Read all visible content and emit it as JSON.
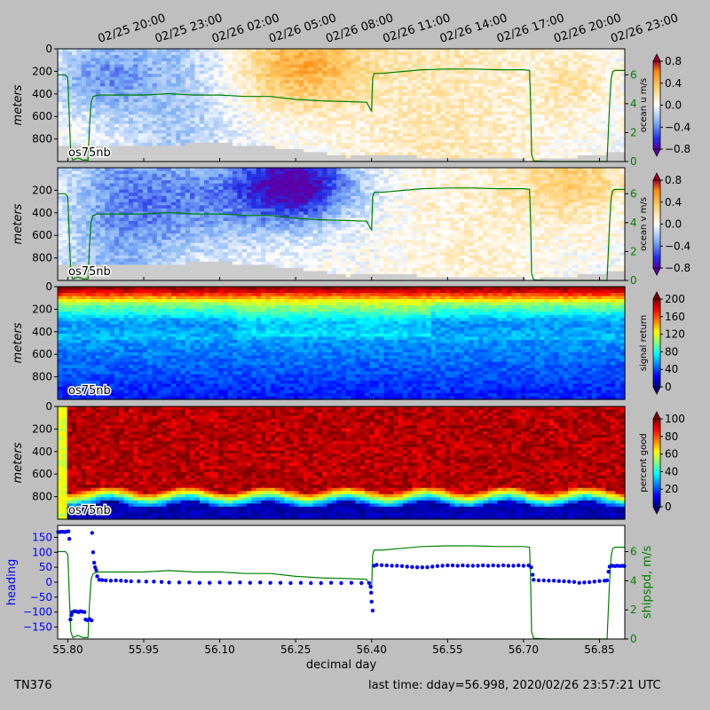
{
  "footer": {
    "cruise_id": "TN376",
    "last_time": "last time: dday=56.998,  2020/02/26 23:57:21 UTC"
  },
  "chart_data": [
    {
      "type": "heatmap",
      "panel": "u",
      "instrument_label": "os75nb",
      "ylabel": "meters",
      "ylim": [
        1000,
        0
      ],
      "yticks": [
        0,
        200,
        400,
        600,
        800
      ],
      "ytick_labels": [
        "0",
        "200",
        "400",
        "600",
        "800"
      ],
      "colorbar_label": "ocean u m/s",
      "colorbar_ticks": [
        "0.8",
        "0.4",
        "0.0",
        "−0.4",
        "−0.8"
      ],
      "colorbar_range": [
        -0.8,
        0.8
      ],
      "colormap": "blue-white-orange",
      "right_axis_ticks": [
        "0",
        "2",
        "4",
        "6"
      ],
      "top_time_labels": [
        "02/25 20:00",
        "02/25 23:00",
        "02/26 02:00",
        "02/26 05:00",
        "02/26 08:00",
        "02/26 11:00",
        "02/26 14:00",
        "02/26 17:00",
        "02/26 20:00",
        "02/26 23:00"
      ],
      "bottom_depth_m": [
        [
          55.78,
          870
        ],
        [
          55.9,
          860
        ],
        [
          56.1,
          840
        ],
        [
          56.2,
          870
        ],
        [
          56.3,
          920
        ],
        [
          56.35,
          960
        ],
        [
          56.4,
          940
        ],
        [
          56.5,
          960
        ],
        [
          56.6,
          960
        ],
        [
          56.72,
          990
        ],
        [
          56.8,
          960
        ],
        [
          56.9,
          910
        ]
      ]
    },
    {
      "type": "heatmap",
      "panel": "v",
      "instrument_label": "os75nb",
      "ylabel": "meters",
      "ylim": [
        1000,
        0
      ],
      "yticks": [
        200,
        400,
        600,
        800
      ],
      "ytick_labels": [
        "200",
        "400",
        "600",
        "800"
      ],
      "colorbar_label": "ocean v m/s",
      "colorbar_ticks": [
        "0.8",
        "0.4",
        "0.0",
        "−0.4",
        "−0.8"
      ],
      "colorbar_range": [
        -0.8,
        0.8
      ],
      "colormap": "blue-white-orange",
      "right_axis_ticks": [
        "0",
        "2",
        "4",
        "6"
      ],
      "bottom_depth_m": [
        [
          55.78,
          870
        ],
        [
          55.9,
          860
        ],
        [
          56.1,
          840
        ],
        [
          56.2,
          870
        ],
        [
          56.3,
          920
        ],
        [
          56.35,
          960
        ],
        [
          56.4,
          940
        ],
        [
          56.5,
          960
        ],
        [
          56.6,
          960
        ],
        [
          56.72,
          990
        ],
        [
          56.8,
          960
        ],
        [
          56.9,
          910
        ]
      ]
    },
    {
      "type": "heatmap",
      "panel": "amp",
      "instrument_label": "os75nb",
      "ylabel": "meters",
      "ylim": [
        1000,
        0
      ],
      "yticks": [
        0,
        200,
        400,
        600,
        800
      ],
      "ytick_labels": [
        "0",
        "200",
        "400",
        "600",
        "800"
      ],
      "colorbar_label": "signal return",
      "colorbar_ticks": [
        "200",
        "160",
        "120",
        "80",
        "40",
        "0"
      ],
      "colorbar_range": [
        0,
        200
      ],
      "colormap": "jet"
    },
    {
      "type": "heatmap",
      "panel": "pg",
      "instrument_label": "os75nb",
      "ylabel": "meters",
      "ylim": [
        1000,
        0
      ],
      "yticks": [
        0,
        200,
        400,
        600,
        800
      ],
      "ytick_labels": [
        "0",
        "200",
        "400",
        "600",
        "800"
      ],
      "colorbar_label": "percent good",
      "colorbar_ticks": [
        "100",
        "80",
        "60",
        "40",
        "20",
        "0"
      ],
      "colorbar_range": [
        0,
        100
      ],
      "colormap": "jet"
    },
    {
      "type": "scatter",
      "panel": "heading",
      "xlabel": "decimal day",
      "xlim": [
        55.78,
        56.9
      ],
      "xticks": [
        55.8,
        55.95,
        56.1,
        56.25,
        56.4,
        56.55,
        56.7,
        56.85
      ],
      "xtick_labels": [
        "55.80",
        "55.95",
        "56.10",
        "56.25",
        "56.40",
        "56.55",
        "56.70",
        "56.85"
      ],
      "ylabel": "heading",
      "ylim": [
        -190,
        190
      ],
      "yticks": [
        150,
        100,
        50,
        0,
        -50,
        -100,
        -150
      ],
      "ytick_labels": [
        "150",
        "100",
        "50",
        "0",
        "−50",
        "−100",
        "−150"
      ],
      "y2label": "shipspd, m/s",
      "y2lim": [
        0,
        7.8
      ],
      "y2ticks": [
        0,
        2,
        4,
        6
      ],
      "y2tick_labels": [
        "0",
        "2",
        "4",
        "6"
      ],
      "colors": {
        "heading": "#0000ff",
        "shipspd": "#008000"
      },
      "series": [
        {
          "name": "heading",
          "type": "scatter",
          "points": [
            [
              55.781,
              168
            ],
            [
              55.785,
              168
            ],
            [
              55.789,
              169
            ],
            [
              55.793,
              168
            ],
            [
              55.797,
              169
            ],
            [
              55.801,
              170
            ],
            [
              55.803,
              145
            ],
            [
              55.805,
              -125
            ],
            [
              55.807,
              -110
            ],
            [
              55.809,
              -100
            ],
            [
              55.813,
              -97
            ],
            [
              55.817,
              -98
            ],
            [
              55.821,
              -100
            ],
            [
              55.825,
              -97
            ],
            [
              55.829,
              -99
            ],
            [
              55.833,
              -100
            ],
            [
              55.835,
              -125
            ],
            [
              55.839,
              -127
            ],
            [
              55.843,
              -123
            ],
            [
              55.847,
              -128
            ],
            [
              55.848,
              165
            ],
            [
              55.85,
              100
            ],
            [
              55.852,
              65
            ],
            [
              55.854,
              50
            ],
            [
              55.856,
              40
            ],
            [
              55.858,
              20
            ],
            [
              55.862,
              8
            ],
            [
              55.868,
              7
            ],
            [
              55.875,
              6
            ],
            [
              55.885,
              5
            ],
            [
              55.895,
              6
            ],
            [
              55.905,
              5
            ],
            [
              55.915,
              4
            ],
            [
              55.925,
              3
            ],
            [
              55.94,
              3
            ],
            [
              55.955,
              2
            ],
            [
              55.97,
              2
            ],
            [
              55.985,
              1
            ],
            [
              56.0,
              -1
            ],
            [
              56.02,
              -1
            ],
            [
              56.04,
              -1
            ],
            [
              56.06,
              -2
            ],
            [
              56.08,
              -2
            ],
            [
              56.1,
              -1
            ],
            [
              56.12,
              -2
            ],
            [
              56.14,
              -1
            ],
            [
              56.16,
              -2
            ],
            [
              56.18,
              -1
            ],
            [
              56.2,
              -2
            ],
            [
              56.22,
              -2
            ],
            [
              56.24,
              -3
            ],
            [
              56.26,
              -2
            ],
            [
              56.28,
              -3
            ],
            [
              56.3,
              -3
            ],
            [
              56.32,
              -2
            ],
            [
              56.34,
              -3
            ],
            [
              56.36,
              -2
            ],
            [
              56.38,
              -3
            ],
            [
              56.395,
              -3
            ],
            [
              56.398,
              -15
            ],
            [
              56.399,
              -35
            ],
            [
              56.4,
              -65
            ],
            [
              56.402,
              -95
            ],
            [
              56.405,
              55
            ],
            [
              56.41,
              58
            ],
            [
              56.42,
              57
            ],
            [
              56.43,
              56
            ],
            [
              56.44,
              55
            ],
            [
              56.45,
              55
            ],
            [
              56.46,
              54
            ],
            [
              56.47,
              52
            ],
            [
              56.48,
              51
            ],
            [
              56.49,
              50
            ],
            [
              56.5,
              50
            ],
            [
              56.51,
              50
            ],
            [
              56.52,
              52
            ],
            [
              56.53,
              54
            ],
            [
              56.54,
              55
            ],
            [
              56.55,
              56
            ],
            [
              56.56,
              56
            ],
            [
              56.57,
              55
            ],
            [
              56.58,
              56
            ],
            [
              56.59,
              55
            ],
            [
              56.6,
              55
            ],
            [
              56.61,
              55
            ],
            [
              56.62,
              56
            ],
            [
              56.63,
              55
            ],
            [
              56.64,
              56
            ],
            [
              56.65,
              55
            ],
            [
              56.66,
              56
            ],
            [
              56.67,
              55
            ],
            [
              56.68,
              55
            ],
            [
              56.69,
              56
            ],
            [
              56.7,
              55
            ],
            [
              56.71,
              56
            ],
            [
              56.715,
              50
            ],
            [
              56.718,
              25
            ],
            [
              56.72,
              8
            ],
            [
              56.73,
              6
            ],
            [
              56.74,
              6
            ],
            [
              56.75,
              5
            ],
            [
              56.76,
              5
            ],
            [
              56.77,
              4
            ],
            [
              56.78,
              3
            ],
            [
              56.79,
              2
            ],
            [
              56.8,
              1
            ],
            [
              56.81,
              -2
            ],
            [
              56.82,
              -1
            ],
            [
              56.83,
              0
            ],
            [
              56.84,
              2
            ],
            [
              56.85,
              4
            ],
            [
              56.86,
              5
            ],
            [
              56.865,
              6
            ],
            [
              56.868,
              35
            ],
            [
              56.87,
              52
            ],
            [
              56.875,
              55
            ],
            [
              56.88,
              54
            ],
            [
              56.885,
              55
            ],
            [
              56.89,
              54
            ],
            [
              56.895,
              55
            ],
            [
              56.899,
              54
            ]
          ]
        },
        {
          "name": "shipspd",
          "type": "line",
          "axis": "right",
          "points": [
            [
              55.78,
              6.0
            ],
            [
              55.795,
              6.0
            ],
            [
              55.8,
              5.8
            ],
            [
              55.803,
              3.0
            ],
            [
              55.806,
              0.5
            ],
            [
              55.81,
              0.1
            ],
            [
              55.82,
              0.25
            ],
            [
              55.83,
              0.1
            ],
            [
              55.84,
              0.1
            ],
            [
              55.843,
              2.5
            ],
            [
              55.846,
              4.1
            ],
            [
              55.85,
              4.5
            ],
            [
              55.86,
              4.6
            ],
            [
              55.9,
              4.6
            ],
            [
              55.95,
              4.6
            ],
            [
              56.0,
              4.7
            ],
            [
              56.05,
              4.6
            ],
            [
              56.1,
              4.6
            ],
            [
              56.15,
              4.5
            ],
            [
              56.2,
              4.5
            ],
            [
              56.25,
              4.3
            ],
            [
              56.3,
              4.2
            ],
            [
              56.35,
              4.15
            ],
            [
              56.39,
              4.1
            ],
            [
              56.398,
              3.6
            ],
            [
              56.4,
              3.5
            ],
            [
              56.402,
              5.8
            ],
            [
              56.405,
              6.1
            ],
            [
              56.42,
              6.1
            ],
            [
              56.45,
              6.2
            ],
            [
              56.5,
              6.35
            ],
            [
              56.55,
              6.4
            ],
            [
              56.6,
              6.4
            ],
            [
              56.65,
              6.35
            ],
            [
              56.7,
              6.35
            ],
            [
              56.712,
              6.3
            ],
            [
              56.714,
              4.0
            ],
            [
              56.716,
              0.5
            ],
            [
              56.72,
              0.05
            ],
            [
              56.75,
              0.0
            ],
            [
              56.8,
              0.0
            ],
            [
              56.85,
              0.0
            ],
            [
              56.865,
              0.0
            ],
            [
              56.87,
              4.0
            ],
            [
              56.873,
              5.7
            ],
            [
              56.876,
              6.2
            ],
            [
              56.88,
              6.3
            ],
            [
              56.9,
              6.3
            ]
          ]
        }
      ]
    }
  ]
}
